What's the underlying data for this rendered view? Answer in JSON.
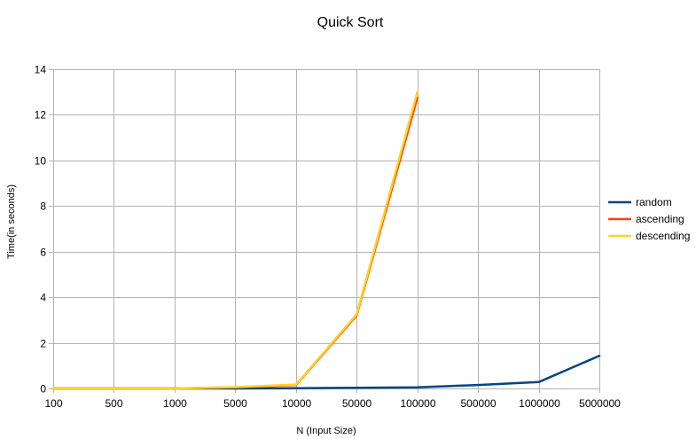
{
  "chart_data": {
    "type": "line",
    "title": "Quick Sort",
    "xlabel": "N (Input Size)",
    "ylabel": "Time(in seconds)",
    "categories": [
      "100",
      "500",
      "1000",
      "5000",
      "10000",
      "50000",
      "100000",
      "500000",
      "1000000",
      "5000000"
    ],
    "ylim": [
      0,
      14
    ],
    "yticks": [
      0,
      2,
      4,
      6,
      8,
      10,
      12,
      14
    ],
    "grid": true,
    "legend_position": "right",
    "series": [
      {
        "name": "random",
        "color": "#004586",
        "values": [
          0,
          0,
          0,
          0,
          0.01,
          0.03,
          0.05,
          0.15,
          0.28,
          1.43
        ]
      },
      {
        "name": "ascending",
        "color": "#ff420e",
        "values": [
          0,
          0,
          0,
          0.05,
          0.15,
          3.2,
          12.75,
          null,
          null,
          null
        ]
      },
      {
        "name": "descending",
        "color": "#ffd320",
        "values": [
          0,
          0,
          0,
          0.06,
          0.17,
          3.25,
          13.0,
          null,
          null,
          null
        ]
      }
    ]
  }
}
